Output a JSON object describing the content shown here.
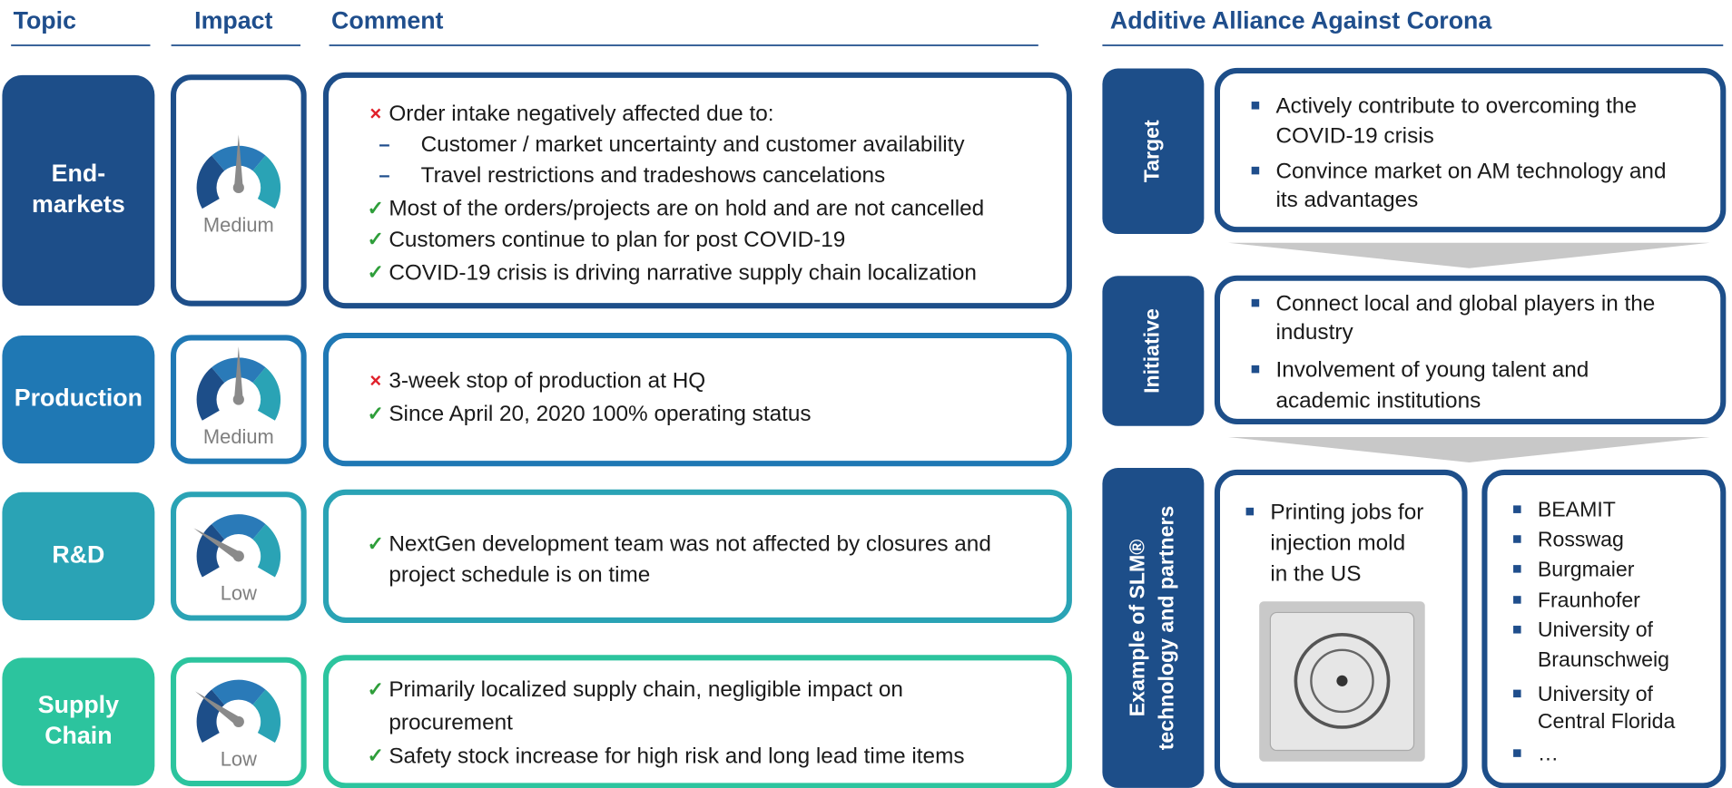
{
  "header": {
    "topic": "Topic",
    "impact": "Impact",
    "comment": "Comment",
    "alliance": "Additive Alliance Against Corona"
  },
  "rows": [
    {
      "topic": [
        "End-",
        "markets"
      ],
      "impact": "Medium",
      "comments": [
        {
          "marker": "×",
          "lines": [
            "Order intake negatively affected due to:"
          ]
        },
        {
          "marker": "–",
          "lines": [
            "Customer / market uncertainty and customer availability"
          ]
        },
        {
          "marker": "–",
          "lines": [
            "Travel restrictions and tradeshows cancelations"
          ]
        },
        {
          "marker": "✓",
          "lines": [
            "Most of the orders/projects are on hold and are not cancelled"
          ]
        },
        {
          "marker": "✓",
          "lines": [
            "Customers continue to plan for post COVID-19"
          ]
        },
        {
          "marker": "✓",
          "lines": [
            "COVID-19 crisis is driving narrative supply chain localization"
          ]
        }
      ]
    },
    {
      "topic": [
        "Production"
      ],
      "impact": "Medium",
      "comments": [
        {
          "marker": "×",
          "lines": [
            "3-week stop of production at HQ"
          ]
        },
        {
          "marker": "✓",
          "lines": [
            "Since April 20, 2020 100% operating status"
          ]
        }
      ]
    },
    {
      "topic": [
        "R&D"
      ],
      "impact": "Low",
      "comments": [
        {
          "marker": "✓",
          "lines": [
            "NextGen development team was not affected by closures and",
            "project schedule is on time"
          ]
        }
      ]
    },
    {
      "topic": [
        "Supply",
        "Chain"
      ],
      "impact": "Low",
      "comments": [
        {
          "marker": "✓",
          "lines": [
            "Primarily localized supply chain, negligible impact on",
            "procurement"
          ]
        },
        {
          "marker": "✓",
          "lines": [
            "Safety stock increase for high risk and long lead time items"
          ]
        }
      ]
    }
  ],
  "alliance": {
    "target": {
      "label": [
        "Target"
      ],
      "bullets": [
        [
          "Actively contribute to overcoming the",
          "COVID-19 crisis"
        ],
        [
          "Convince market on AM technology and",
          "its advantages"
        ]
      ]
    },
    "initiative": {
      "label": [
        "Initiative"
      ],
      "bullets": [
        [
          "Connect local and global players in the",
          "industry"
        ],
        [
          "Involvement of young talent and",
          "academic institutions"
        ]
      ]
    },
    "example": {
      "label": [
        "Example of SLM®",
        "technology and partners"
      ],
      "bullets": [
        [
          "Printing jobs for",
          "injection mold",
          "in the US"
        ]
      ],
      "partners": [
        [
          "BEAMIT"
        ],
        [
          "Rosswag"
        ],
        [
          "Burgmaier"
        ],
        [
          "Fraunhofer"
        ],
        [
          "University of",
          "Braunschweig"
        ],
        [
          "University of",
          "Central Florida"
        ],
        [
          "…"
        ]
      ]
    }
  }
}
